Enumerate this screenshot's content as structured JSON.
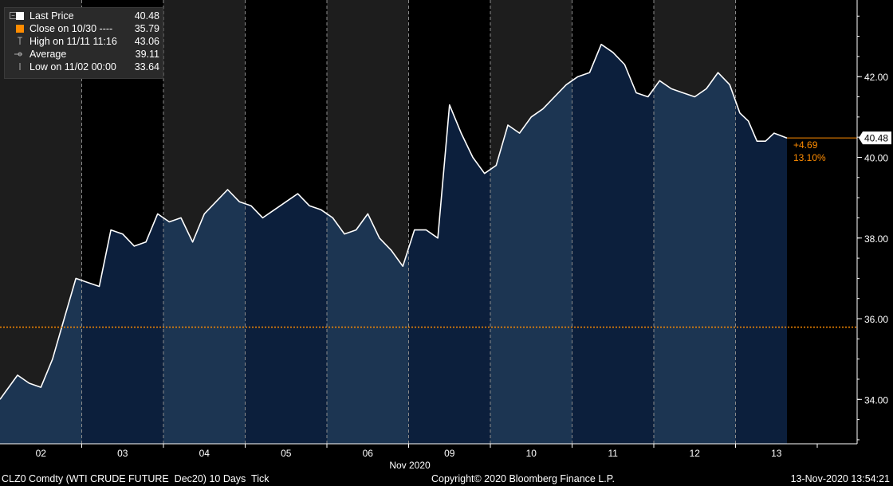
{
  "chart_data": {
    "type": "line",
    "instrument": "CLZ0 Comdty (WTI CRUDE FUTURE  Dec20) 10 Days  Tick",
    "xlabel": "Nov 2020",
    "x_ticks": [
      "02",
      "03",
      "04",
      "05",
      "06",
      "09",
      "10",
      "11",
      "12",
      "13"
    ],
    "y_ticks": [
      "34.00",
      "36.00",
      "38.00",
      "40.00",
      "42.00"
    ],
    "ylim": [
      32.9,
      43.9
    ],
    "series": [
      {
        "name": "Last Price",
        "x": [
          "02",
          "02",
          "02",
          "02",
          "02",
          "02",
          "02",
          "03",
          "03",
          "03",
          "03",
          "03",
          "03",
          "03",
          "04",
          "04",
          "04",
          "04",
          "04",
          "04",
          "04",
          "05",
          "05",
          "05",
          "05",
          "05",
          "05",
          "05",
          "06",
          "06",
          "06",
          "06",
          "06",
          "06",
          "06",
          "09",
          "09",
          "09",
          "09",
          "09",
          "09",
          "09",
          "10",
          "10",
          "10",
          "10",
          "10",
          "10",
          "10",
          "11",
          "11",
          "11",
          "11",
          "11",
          "11",
          "11",
          "12",
          "12",
          "12",
          "12",
          "12",
          "12",
          "12",
          "13",
          "13",
          "13",
          "13",
          "13",
          "13"
        ],
        "values": [
          34.0,
          34.6,
          34.4,
          34.3,
          35.0,
          36.0,
          37.0,
          36.9,
          36.8,
          38.2,
          38.1,
          37.8,
          37.9,
          38.6,
          38.4,
          38.5,
          37.9,
          38.6,
          38.9,
          39.2,
          38.9,
          38.8,
          38.5,
          38.7,
          38.9,
          39.1,
          38.8,
          38.7,
          38.5,
          38.1,
          38.2,
          38.6,
          38.0,
          37.7,
          37.3,
          38.2,
          38.2,
          38.0,
          41.3,
          40.6,
          40.0,
          39.6,
          39.8,
          40.8,
          40.6,
          41.0,
          41.2,
          41.5,
          41.8,
          42.0,
          42.1,
          42.8,
          42.6,
          42.3,
          41.6,
          41.5,
          41.9,
          41.7,
          41.6,
          41.5,
          41.7,
          42.1,
          41.8,
          41.1,
          40.9,
          40.4,
          40.4,
          40.6,
          40.48
        ]
      }
    ],
    "reference_line": {
      "name": "Close on 10/30",
      "value": 35.79,
      "color": "#ff8c00",
      "style": "dashed"
    },
    "change": {
      "abs": "+4.69",
      "pct": "13.10%",
      "color": "#ff8c00"
    },
    "last_price_tag": "40.48",
    "grid": false,
    "legend_position": "top-left",
    "area_fill_colors": {
      "light": "#1c3552",
      "dark": "#0c1f3c"
    },
    "session_shading": "#1d1d1d"
  },
  "legend": {
    "items": [
      {
        "label": "Last Price",
        "value": "40.48",
        "icon": "white-square-icon"
      },
      {
        "label": "Close on 10/30 ----",
        "value": "35.79",
        "icon": "orange-square-icon"
      },
      {
        "label": "High on 11/11 11:16",
        "value": "43.06",
        "icon": "high-marker-icon"
      },
      {
        "label": "Average",
        "value": "39.11",
        "icon": "average-marker-icon"
      },
      {
        "label": "Low on 11/02 00:00",
        "value": "33.64",
        "icon": "low-marker-icon"
      }
    ]
  },
  "footer": {
    "left": "CLZ0 Comdty (WTI CRUDE FUTURE  Dec20) 10 Days  Tick",
    "center": "Copyright© 2020 Bloomberg Finance L.P.",
    "right": "13-Nov-2020 13:54:21"
  }
}
